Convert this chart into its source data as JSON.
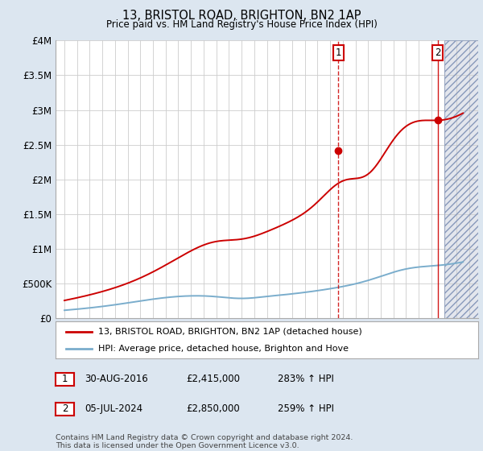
{
  "title": "13, BRISTOL ROAD, BRIGHTON, BN2 1AP",
  "subtitle": "Price paid vs. HM Land Registry's House Price Index (HPI)",
  "bg_color": "#dce6f0",
  "plot_bg_color": "#ffffff",
  "grid_color": "#cccccc",
  "line1_color": "#cc0000",
  "line2_color": "#7aadcc",
  "ylim": [
    0,
    4000000
  ],
  "yticks": [
    0,
    500000,
    1000000,
    1500000,
    2000000,
    2500000,
    3000000,
    3500000,
    4000000
  ],
  "ytick_labels": [
    "£0",
    "£500K",
    "£1M",
    "£1.5M",
    "£2M",
    "£2.5M",
    "£3M",
    "£3.5M",
    "£4M"
  ],
  "marker1_year": 2016.66,
  "marker1_value": 2415000,
  "marker2_year": 2024.5,
  "marker2_value": 2850000,
  "legend_line1": "13, BRISTOL ROAD, BRIGHTON, BN2 1AP (detached house)",
  "legend_line2": "HPI: Average price, detached house, Brighton and Hove",
  "table_row1": [
    "1",
    "30-AUG-2016",
    "£2,415,000",
    "283% ↑ HPI"
  ],
  "table_row2": [
    "2",
    "05-JUL-2024",
    "£2,850,000",
    "259% ↑ HPI"
  ],
  "footnote": "Contains HM Land Registry data © Crown copyright and database right 2024.\nThis data is licensed under the Open Government Licence v3.0."
}
